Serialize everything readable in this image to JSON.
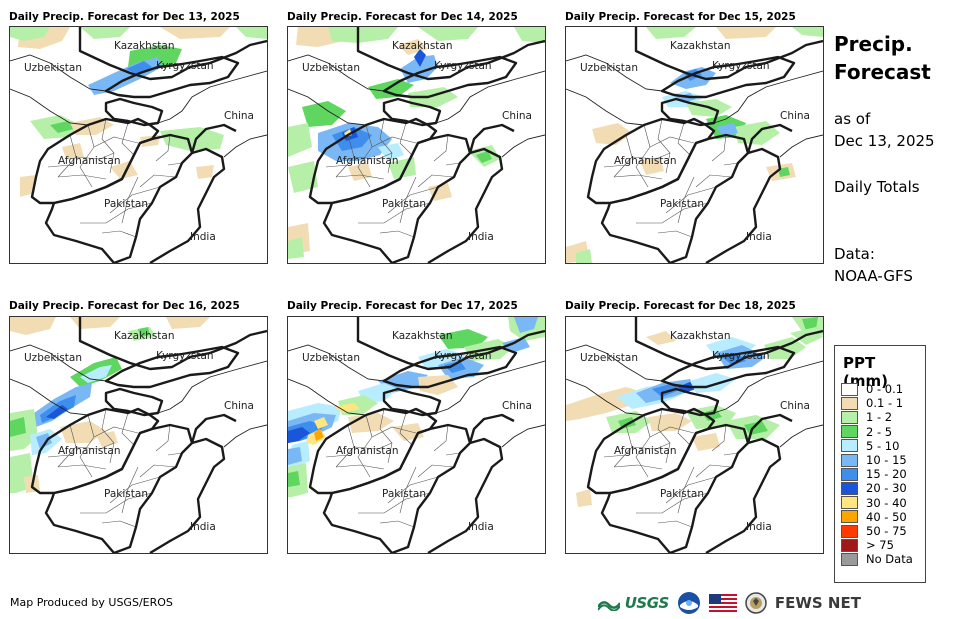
{
  "panels": [
    {
      "title": "Daily Precip. Forecast for Dec 13, 2025"
    },
    {
      "title": "Daily Precip. Forecast for Dec 14, 2025"
    },
    {
      "title": "Daily Precip. Forecast for Dec 15, 2025"
    },
    {
      "title": "Daily Precip. Forecast for Dec 16, 2025"
    },
    {
      "title": "Daily Precip. Forecast for Dec 17, 2025"
    },
    {
      "title": "Daily Precip. Forecast for Dec 18, 2025"
    }
  ],
  "map_labels": {
    "kazakhstan": "Kazakhstan",
    "uzbekistan": "Uzbekistan",
    "kyrgyzstan": "Kyrgyzstan",
    "china": "China",
    "afghanistan": "Afghanistan",
    "pakistan": "Pakistan",
    "india": "India"
  },
  "sidebar": {
    "title_line1": "Precip.",
    "title_line2": "Forecast",
    "asof_line1": "as of",
    "asof_line2": "Dec 13, 2025",
    "totals": "Daily Totals",
    "data_line1": "Data:",
    "data_line2": "NOAA-GFS"
  },
  "legend": {
    "title": "PPT (mm)",
    "items": [
      {
        "label": "0 - 0.1",
        "color": "#ffffff"
      },
      {
        "label": "0.1 - 1",
        "color": "#f2dcb4"
      },
      {
        "label": "1 - 2",
        "color": "#b6f0a8"
      },
      {
        "label": "2 - 5",
        "color": "#5fd65f"
      },
      {
        "label": "5 - 10",
        "color": "#b8ecff"
      },
      {
        "label": "10 - 15",
        "color": "#7ab8f5"
      },
      {
        "label": "15 - 20",
        "color": "#3f8ded"
      },
      {
        "label": "20 - 30",
        "color": "#1a56d9"
      },
      {
        "label": "30 - 40",
        "color": "#ffe680"
      },
      {
        "label": "40 - 50",
        "color": "#ffa500"
      },
      {
        "label": "50 - 75",
        "color": "#ff3a00"
      },
      {
        "label": "> 75",
        "color": "#a01818"
      },
      {
        "label": "No Data",
        "color": "#9a9a9a"
      }
    ]
  },
  "footer": {
    "credit": "Map Produced by USGS/EROS",
    "usgs_logo": "USGS",
    "fews_logo": "FEWS NET"
  }
}
